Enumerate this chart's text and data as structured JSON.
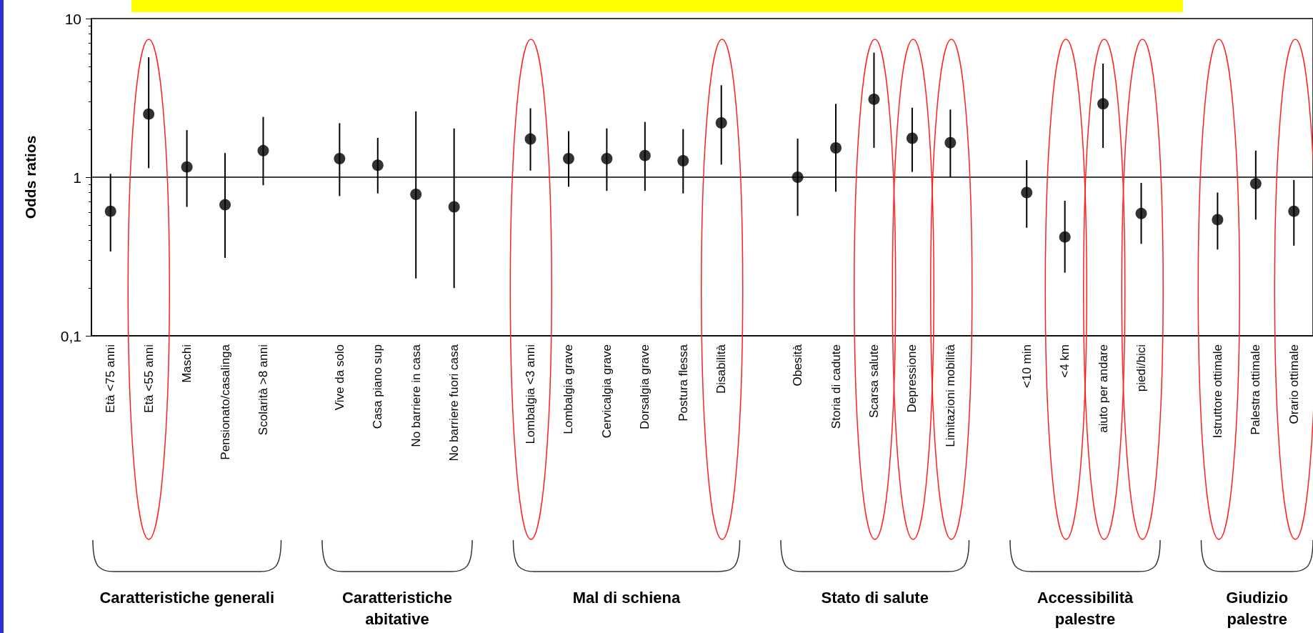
{
  "chart_data": {
    "type": "scatter",
    "ylabel": "Odds ratios",
    "categories": [
      "Età <75 anni",
      "Età <55 anni",
      "Maschi",
      "Pensionato/casalinga",
      "Scolarità >8 anni",
      null,
      "Vive da solo",
      "Casa piano sup",
      "No barriere in casa",
      "No barriere fuori casa",
      null,
      "Lombalgia <3 anni",
      "Lombalgia grave",
      "Cervicalgia grave",
      "Dorsalgia grave",
      "Postura flessa",
      "Disabilità",
      null,
      "Obesità",
      "Storia di cadute",
      "Scarsa salute",
      "Depressione",
      "Limitazioni mobilità",
      null,
      "<10 min",
      "<4 km",
      "aiuto per andare",
      "piedi/bici",
      null,
      "Istruttore ottimale",
      "Palestra ottimale",
      "Orario ottimale"
    ],
    "values": [
      0.61,
      2.5,
      1.16,
      0.67,
      1.47,
      null,
      1.31,
      1.19,
      0.78,
      0.65,
      null,
      1.74,
      1.31,
      1.31,
      1.37,
      1.27,
      2.2,
      null,
      1.0,
      1.53,
      3.1,
      1.76,
      1.65,
      null,
      0.8,
      0.42,
      2.9,
      0.59,
      null,
      0.54,
      0.91,
      0.61
    ],
    "errors": [
      [
        0.34,
        1.05
      ],
      [
        1.14,
        5.7
      ],
      [
        0.65,
        1.98
      ],
      [
        0.31,
        1.42
      ],
      [
        0.89,
        2.4
      ],
      null,
      [
        0.76,
        2.19
      ],
      [
        0.79,
        1.77
      ],
      [
        0.23,
        2.6
      ],
      [
        0.2,
        2.03
      ],
      null,
      [
        1.1,
        2.72
      ],
      [
        0.87,
        1.95
      ],
      [
        0.82,
        2.03
      ],
      [
        0.82,
        2.23
      ],
      [
        0.79,
        2.01
      ],
      [
        1.2,
        3.8
      ],
      null,
      [
        0.57,
        1.75
      ],
      [
        0.81,
        2.9
      ],
      [
        1.53,
        6.1
      ],
      [
        1.08,
        2.74
      ],
      [
        1.0,
        2.67
      ],
      null,
      [
        0.48,
        1.28
      ],
      [
        0.25,
        0.71
      ],
      [
        1.53,
        5.2
      ],
      [
        0.38,
        0.92
      ],
      null,
      [
        0.35,
        0.8
      ],
      [
        0.54,
        1.47
      ],
      [
        0.37,
        0.96
      ]
    ],
    "color": "#000000",
    "marker": "circle",
    "log": "y",
    "ylim": [
      0.1,
      10
    ],
    "yticks": [
      {
        "value": 0.1,
        "label": "0,1"
      },
      1,
      10
    ],
    "ref_lines": [
      {
        "axis": "y",
        "value": 1,
        "color": "#000000"
      }
    ],
    "annotations": [
      "Caratteristiche generali",
      "Caratteristiche abitative",
      "Mal di schiena",
      "Stato di salute",
      "Accessibilità palestre",
      "Giudizio palestre"
    ]
  }
}
